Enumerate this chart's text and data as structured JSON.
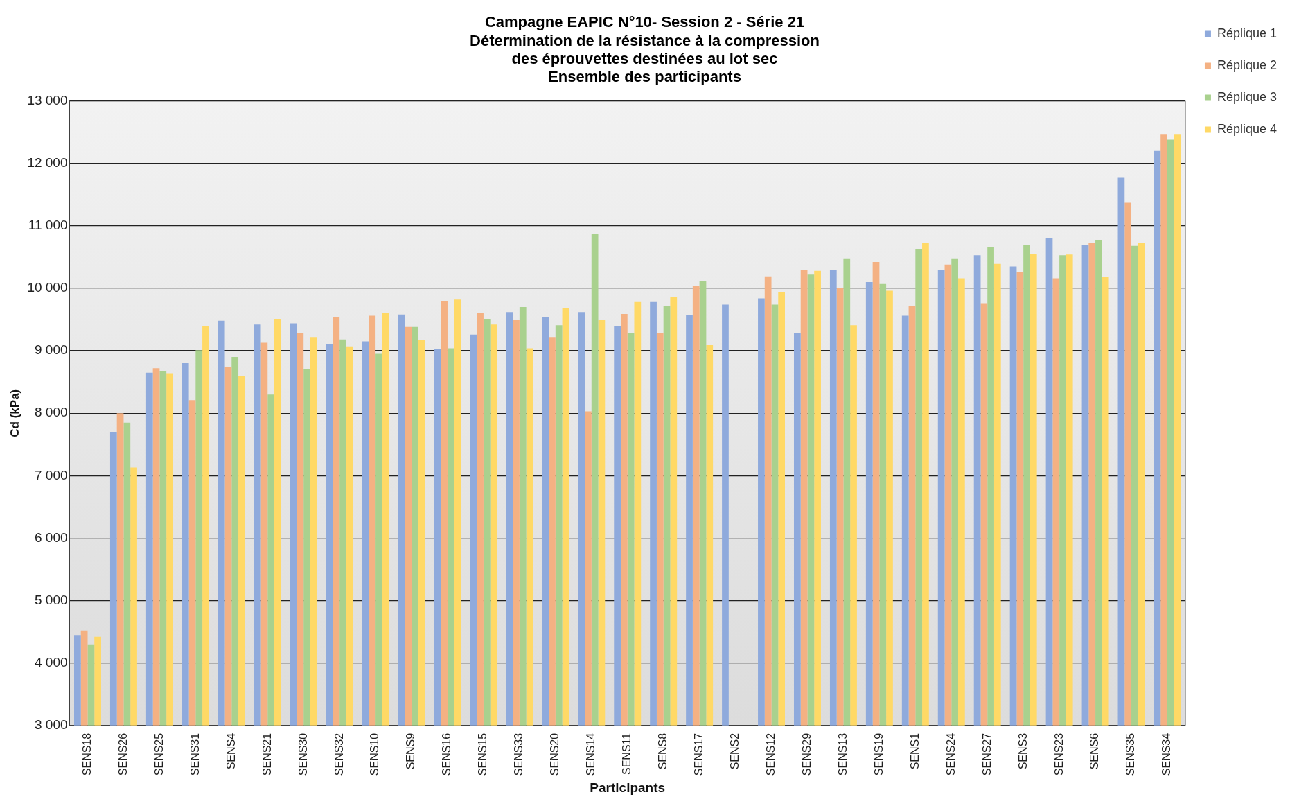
{
  "chart_data": {
    "type": "bar",
    "title": "Campagne EAPIC N°10- Session 2 - Série 21\nDétermination de la résistance à la compression\ndes éprouvettes destinées au lot sec\nEnsemble des participants",
    "xlabel": "Participants",
    "ylabel": "Cd (kPa)",
    "categories": [
      "SENS18",
      "SENS26",
      "SENS25",
      "SENS31",
      "SENS4",
      "SENS21",
      "SENS30",
      "SENS32",
      "SENS10",
      "SENS9",
      "SENS16",
      "SENS15",
      "SENS33",
      "SENS20",
      "SENS14",
      "SENS11",
      "SENS8",
      "SENS17",
      "SENS2",
      "SENS12",
      "SENS29",
      "SENS13",
      "SENS19",
      "SENS1",
      "SENS24",
      "SENS27",
      "SENS3",
      "SENS23",
      "SENS6",
      "SENS35",
      "SENS34"
    ],
    "series": [
      {
        "name": "Réplique 1",
        "color": "#8faadc",
        "values": [
          4450,
          7700,
          8650,
          8800,
          9480,
          9420,
          9440,
          9100,
          9150,
          9580,
          9030,
          9260,
          9620,
          9540,
          9620,
          9400,
          9780,
          9570,
          9740,
          9840,
          9290,
          10300,
          10100,
          9560,
          10290,
          10530,
          10350,
          10810,
          10700,
          11770,
          12200
        ]
      },
      {
        "name": "Réplique 2",
        "color": "#f4b183",
        "values": [
          4520,
          8000,
          8720,
          8210,
          8740,
          9130,
          9290,
          9540,
          9560,
          9380,
          9790,
          9610,
          9490,
          9220,
          8030,
          9590,
          9290,
          10040,
          null,
          10190,
          10290,
          10010,
          10420,
          9720,
          10380,
          9760,
          10260,
          10160,
          10720,
          11370,
          12460
        ]
      },
      {
        "name": "Réplique 3",
        "color": "#a9d18e",
        "values": [
          4300,
          7850,
          8680,
          9010,
          8900,
          8300,
          8710,
          9180,
          8950,
          9380,
          9040,
          9510,
          9700,
          9410,
          10870,
          9290,
          9720,
          10110,
          null,
          9740,
          10220,
          10480,
          10070,
          10630,
          10480,
          10660,
          10690,
          10530,
          10770,
          10680,
          12380
        ]
      },
      {
        "name": "Réplique 4",
        "color": "#ffd966",
        "values": [
          4420,
          7130,
          8640,
          9400,
          8600,
          9500,
          9220,
          9070,
          9600,
          9170,
          9820,
          9420,
          9040,
          9690,
          9490,
          9780,
          9860,
          9090,
          null,
          9940,
          10280,
          9410,
          9960,
          10720,
          10160,
          10390,
          10550,
          10540,
          10180,
          10720,
          12460
        ]
      }
    ],
    "ylim": [
      3000,
      13000
    ],
    "yticks": [
      {
        "value": 3000,
        "label": "3 000"
      },
      {
        "value": 4000,
        "label": "4 000"
      },
      {
        "value": 5000,
        "label": "5 000"
      },
      {
        "value": 6000,
        "label": "6 000"
      },
      {
        "value": 7000,
        "label": "7 000"
      },
      {
        "value": 8000,
        "label": "8 000"
      },
      {
        "value": 9000,
        "label": "9 000"
      },
      {
        "value": 10000,
        "label": "10 000"
      },
      {
        "value": 11000,
        "label": "11 000"
      },
      {
        "value": 12000,
        "label": "12 000"
      },
      {
        "value": 13000,
        "label": "13 000"
      }
    ],
    "grid": "y",
    "legend": "top right"
  }
}
